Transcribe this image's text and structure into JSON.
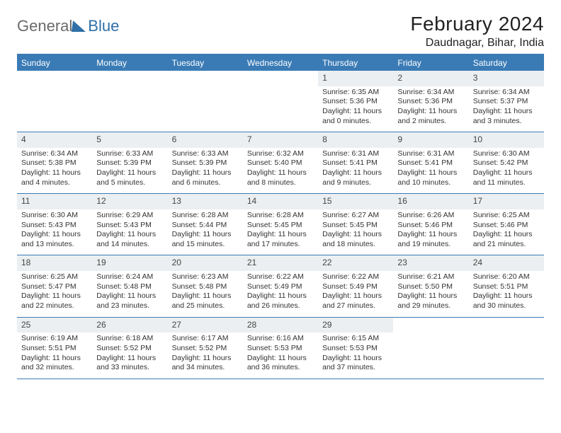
{
  "logo": {
    "general": "General",
    "blue": "Blue"
  },
  "title": "February 2024",
  "location": "Daudnagar, Bihar, India",
  "colors": {
    "header_bg": "#3a7bb5",
    "header_text": "#ffffff",
    "daynum_bg": "#eceff1"
  },
  "weekdays": [
    "Sunday",
    "Monday",
    "Tuesday",
    "Wednesday",
    "Thursday",
    "Friday",
    "Saturday"
  ],
  "weeks": [
    [
      null,
      null,
      null,
      null,
      {
        "n": "1",
        "sr": "6:35 AM",
        "ss": "5:36 PM",
        "dl1": "11 hours",
        "dl2": "and 0 minutes."
      },
      {
        "n": "2",
        "sr": "6:34 AM",
        "ss": "5:36 PM",
        "dl1": "11 hours",
        "dl2": "and 2 minutes."
      },
      {
        "n": "3",
        "sr": "6:34 AM",
        "ss": "5:37 PM",
        "dl1": "11 hours",
        "dl2": "and 3 minutes."
      }
    ],
    [
      {
        "n": "4",
        "sr": "6:34 AM",
        "ss": "5:38 PM",
        "dl1": "11 hours",
        "dl2": "and 4 minutes."
      },
      {
        "n": "5",
        "sr": "6:33 AM",
        "ss": "5:39 PM",
        "dl1": "11 hours",
        "dl2": "and 5 minutes."
      },
      {
        "n": "6",
        "sr": "6:33 AM",
        "ss": "5:39 PM",
        "dl1": "11 hours",
        "dl2": "and 6 minutes."
      },
      {
        "n": "7",
        "sr": "6:32 AM",
        "ss": "5:40 PM",
        "dl1": "11 hours",
        "dl2": "and 8 minutes."
      },
      {
        "n": "8",
        "sr": "6:31 AM",
        "ss": "5:41 PM",
        "dl1": "11 hours",
        "dl2": "and 9 minutes."
      },
      {
        "n": "9",
        "sr": "6:31 AM",
        "ss": "5:41 PM",
        "dl1": "11 hours",
        "dl2": "and 10 minutes."
      },
      {
        "n": "10",
        "sr": "6:30 AM",
        "ss": "5:42 PM",
        "dl1": "11 hours",
        "dl2": "and 11 minutes."
      }
    ],
    [
      {
        "n": "11",
        "sr": "6:30 AM",
        "ss": "5:43 PM",
        "dl1": "11 hours",
        "dl2": "and 13 minutes."
      },
      {
        "n": "12",
        "sr": "6:29 AM",
        "ss": "5:43 PM",
        "dl1": "11 hours",
        "dl2": "and 14 minutes."
      },
      {
        "n": "13",
        "sr": "6:28 AM",
        "ss": "5:44 PM",
        "dl1": "11 hours",
        "dl2": "and 15 minutes."
      },
      {
        "n": "14",
        "sr": "6:28 AM",
        "ss": "5:45 PM",
        "dl1": "11 hours",
        "dl2": "and 17 minutes."
      },
      {
        "n": "15",
        "sr": "6:27 AM",
        "ss": "5:45 PM",
        "dl1": "11 hours",
        "dl2": "and 18 minutes."
      },
      {
        "n": "16",
        "sr": "6:26 AM",
        "ss": "5:46 PM",
        "dl1": "11 hours",
        "dl2": "and 19 minutes."
      },
      {
        "n": "17",
        "sr": "6:25 AM",
        "ss": "5:46 PM",
        "dl1": "11 hours",
        "dl2": "and 21 minutes."
      }
    ],
    [
      {
        "n": "18",
        "sr": "6:25 AM",
        "ss": "5:47 PM",
        "dl1": "11 hours",
        "dl2": "and 22 minutes."
      },
      {
        "n": "19",
        "sr": "6:24 AM",
        "ss": "5:48 PM",
        "dl1": "11 hours",
        "dl2": "and 23 minutes."
      },
      {
        "n": "20",
        "sr": "6:23 AM",
        "ss": "5:48 PM",
        "dl1": "11 hours",
        "dl2": "and 25 minutes."
      },
      {
        "n": "21",
        "sr": "6:22 AM",
        "ss": "5:49 PM",
        "dl1": "11 hours",
        "dl2": "and 26 minutes."
      },
      {
        "n": "22",
        "sr": "6:22 AM",
        "ss": "5:49 PM",
        "dl1": "11 hours",
        "dl2": "and 27 minutes."
      },
      {
        "n": "23",
        "sr": "6:21 AM",
        "ss": "5:50 PM",
        "dl1": "11 hours",
        "dl2": "and 29 minutes."
      },
      {
        "n": "24",
        "sr": "6:20 AM",
        "ss": "5:51 PM",
        "dl1": "11 hours",
        "dl2": "and 30 minutes."
      }
    ],
    [
      {
        "n": "25",
        "sr": "6:19 AM",
        "ss": "5:51 PM",
        "dl1": "11 hours",
        "dl2": "and 32 minutes."
      },
      {
        "n": "26",
        "sr": "6:18 AM",
        "ss": "5:52 PM",
        "dl1": "11 hours",
        "dl2": "and 33 minutes."
      },
      {
        "n": "27",
        "sr": "6:17 AM",
        "ss": "5:52 PM",
        "dl1": "11 hours",
        "dl2": "and 34 minutes."
      },
      {
        "n": "28",
        "sr": "6:16 AM",
        "ss": "5:53 PM",
        "dl1": "11 hours",
        "dl2": "and 36 minutes."
      },
      {
        "n": "29",
        "sr": "6:15 AM",
        "ss": "5:53 PM",
        "dl1": "11 hours",
        "dl2": "and 37 minutes."
      },
      null,
      null
    ]
  ],
  "labels": {
    "sunrise": "Sunrise: ",
    "sunset": "Sunset: ",
    "daylight": "Daylight: "
  }
}
